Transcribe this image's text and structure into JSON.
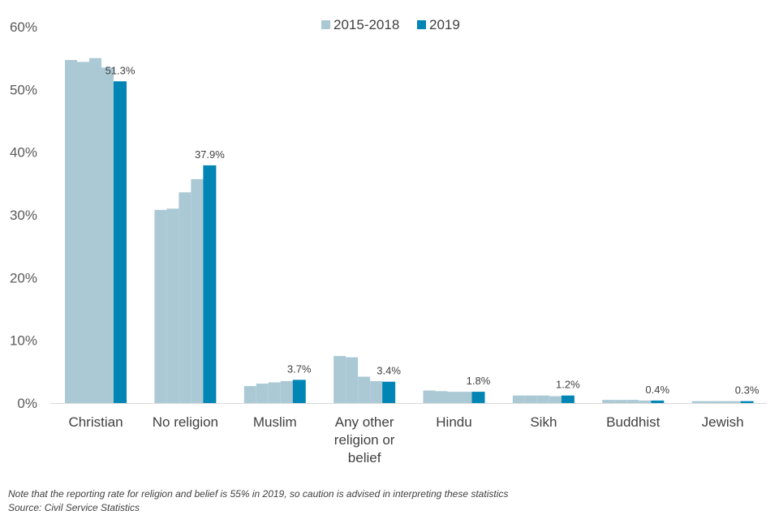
{
  "chart_data": {
    "type": "bar",
    "ylim": [
      0,
      60
    ],
    "yticks": [
      "0%",
      "10%",
      "20%",
      "30%",
      "40%",
      "50%",
      "60%"
    ],
    "legend": [
      "2015-2018",
      "2019"
    ],
    "colors": {
      "history": "#abc9d5",
      "current": "#0085b5"
    },
    "categories": [
      {
        "label": [
          "Christian"
        ],
        "history": [
          54.7,
          54.4,
          55.0,
          53.5
        ],
        "value": 51.3,
        "value_label": "51.3%"
      },
      {
        "label": [
          "No religion"
        ],
        "history": [
          30.8,
          31.0,
          33.6,
          35.7
        ],
        "value": 37.9,
        "value_label": "37.9%"
      },
      {
        "label": [
          "Muslim"
        ],
        "history": [
          2.7,
          3.1,
          3.3,
          3.5
        ],
        "value": 3.7,
        "value_label": "3.7%"
      },
      {
        "label": [
          "Any other",
          "religion or",
          "belief"
        ],
        "history": [
          7.5,
          7.3,
          4.2,
          3.5
        ],
        "value": 3.4,
        "value_label": "3.4%"
      },
      {
        "label": [
          "Hindu"
        ],
        "history": [
          2.0,
          1.9,
          1.8,
          1.8
        ],
        "value": 1.8,
        "value_label": "1.8%"
      },
      {
        "label": [
          "Sikh"
        ],
        "history": [
          1.2,
          1.2,
          1.2,
          1.1
        ],
        "value": 1.2,
        "value_label": "1.2%"
      },
      {
        "label": [
          "Buddhist"
        ],
        "history": [
          0.5,
          0.5,
          0.5,
          0.4
        ],
        "value": 0.4,
        "value_label": "0.4%"
      },
      {
        "label": [
          "Jewish"
        ],
        "history": [
          0.3,
          0.3,
          0.3,
          0.3
        ],
        "value": 0.3,
        "value_label": "0.3%"
      }
    ]
  },
  "footer": {
    "note": "Note that the reporting rate for religion and belief is 55% in 2019, so caution is advised in interpreting these statistics",
    "source": "Source: Civil Service Statistics"
  }
}
